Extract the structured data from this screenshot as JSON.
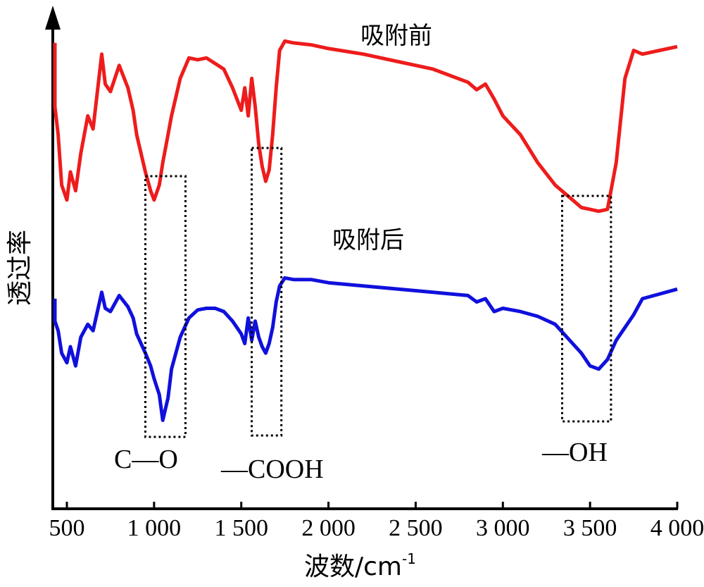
{
  "chart_data": {
    "type": "line",
    "xlabel": "波数/cm",
    "xlabel_sup": "-1",
    "ylabel": "透过率",
    "xlim": [
      500,
      4000
    ],
    "x_ticks": [
      500,
      1000,
      1500,
      2000,
      2500,
      3000,
      3500,
      4000
    ],
    "x_tick_labels": [
      "500",
      "1 000",
      "1 500",
      "2 000",
      "2 500",
      "3 000",
      "3 500",
      "4 000"
    ],
    "y_ticks_shown": false,
    "colors": {
      "before": "#ee1c1c",
      "after": "#1010dd",
      "axis": "#000000"
    },
    "series": [
      {
        "name": "吸附前",
        "color": "#ee1c1c",
        "x": [
          400,
          420,
          450,
          470,
          500,
          520,
          550,
          580,
          620,
          650,
          700,
          720,
          750,
          800,
          850,
          880,
          900,
          950,
          980,
          1000,
          1030,
          1050,
          1080,
          1100,
          1150,
          1200,
          1250,
          1300,
          1350,
          1400,
          1450,
          1500,
          1520,
          1540,
          1560,
          1580,
          1600,
          1620,
          1640,
          1660,
          1680,
          1700,
          1720,
          1750,
          1800,
          1900,
          2000,
          2200,
          2400,
          2600,
          2800,
          2850,
          2900,
          2950,
          3000,
          3100,
          3200,
          3300,
          3400,
          3450,
          3500,
          3550,
          3600,
          3650,
          3700,
          3750,
          3800,
          3900,
          4000
        ],
        "y": [
          94,
          60,
          45,
          18,
          10,
          25,
          15,
          35,
          55,
          48,
          88,
          72,
          68,
          82,
          70,
          58,
          45,
          25,
          15,
          10,
          18,
          30,
          45,
          55,
          75,
          86,
          85,
          86,
          83,
          80,
          70,
          58,
          70,
          55,
          75,
          60,
          40,
          28,
          20,
          26,
          45,
          70,
          90,
          95,
          94,
          93,
          91,
          88,
          84,
          80,
          73,
          69,
          72,
          64,
          55,
          45,
          30,
          18,
          10,
          6,
          5,
          4,
          5,
          30,
          75,
          90,
          88,
          90,
          92
        ]
      },
      {
        "name": "吸附后",
        "color": "#1010dd",
        "x": [
          400,
          420,
          450,
          470,
          500,
          520,
          550,
          580,
          620,
          650,
          700,
          720,
          750,
          800,
          850,
          880,
          900,
          950,
          980,
          1000,
          1030,
          1050,
          1080,
          1100,
          1150,
          1200,
          1250,
          1300,
          1350,
          1400,
          1450,
          1500,
          1520,
          1540,
          1560,
          1580,
          1600,
          1620,
          1640,
          1660,
          1680,
          1700,
          1720,
          1750,
          1800,
          1900,
          2000,
          2200,
          2400,
          2600,
          2800,
          2850,
          2900,
          2950,
          3000,
          3100,
          3200,
          3300,
          3350,
          3400,
          3450,
          3500,
          3550,
          3600,
          3650,
          3700,
          3750,
          3800,
          3900,
          4000
        ],
        "y": [
          52,
          38,
          32,
          18,
          12,
          22,
          10,
          28,
          36,
          32,
          56,
          46,
          44,
          54,
          47,
          40,
          30,
          18,
          10,
          2,
          -8,
          -24,
          -10,
          8,
          28,
          40,
          45,
          46,
          46,
          44,
          38,
          30,
          24,
          40,
          26,
          38,
          28,
          22,
          18,
          24,
          34,
          50,
          60,
          65,
          64,
          64,
          62,
          60,
          58,
          56,
          54,
          50,
          52,
          44,
          46,
          44,
          41,
          36,
          30,
          24,
          18,
          10,
          8,
          14,
          26,
          34,
          42,
          52,
          55,
          58
        ]
      }
    ],
    "annotations": [
      {
        "label": "C—O",
        "x_range": [
          950,
          1180
        ]
      },
      {
        "label": "—COOH",
        "x_range": [
          1560,
          1730
        ]
      },
      {
        "label": "—OH",
        "x_range": [
          3340,
          3620
        ]
      }
    ]
  }
}
